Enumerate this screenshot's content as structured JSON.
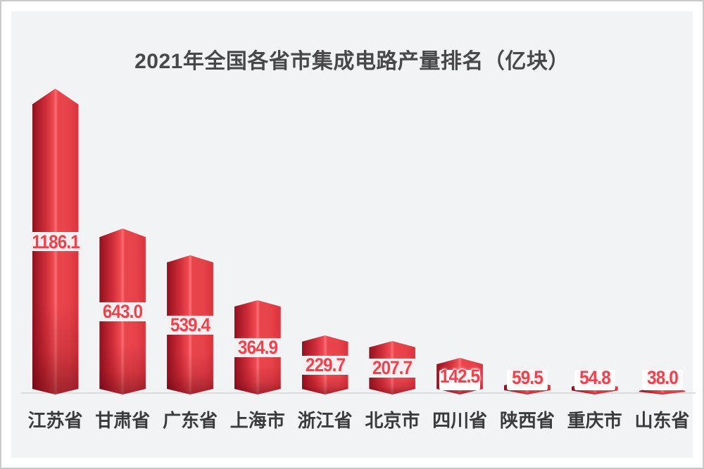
{
  "chart_data": {
    "type": "bar",
    "title": "2021年全国各省市集成电路产量排名（亿块）",
    "unit": "亿块",
    "categories": [
      "江苏省",
      "甘肃省",
      "广东省",
      "上海市",
      "浙江省",
      "北京市",
      "四川省",
      "陕西省",
      "重庆市",
      "山东省"
    ],
    "values": [
      1186.1,
      643.0,
      539.4,
      364.9,
      229.7,
      207.7,
      142.5,
      59.5,
      54.8,
      38.0
    ],
    "value_labels": [
      "1186.1",
      "643.0",
      "539.4",
      "364.9",
      "229.7",
      "207.7",
      "142.5",
      "59.5",
      "54.8",
      "38.0"
    ],
    "xlabel": "",
    "ylabel": "",
    "ylim": [
      0,
      1250
    ],
    "grid": false,
    "legend": null,
    "colors": {
      "bar_dark": "#8e1120",
      "bar_main": "#e6424a",
      "bar_ridge": "#f5696e",
      "value_text": "#f0404c",
      "category_text": "#3b3b3e",
      "title_text": "#48484a",
      "axis_line": "#dcdcdc",
      "panel_bg": "#f2f3f4"
    }
  }
}
